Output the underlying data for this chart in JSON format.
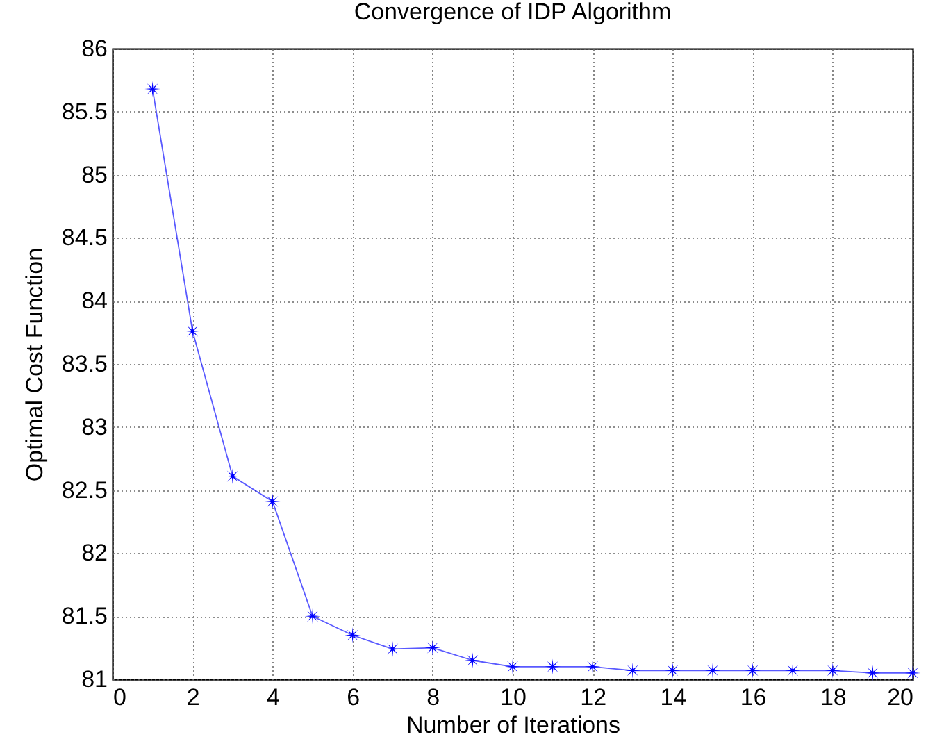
{
  "chart_data": {
    "type": "line",
    "title": "Convergence of IDP Algorithm",
    "xlabel": "Number of Iterations",
    "ylabel": "Optimal Cost Function",
    "x": [
      1,
      2,
      3,
      4,
      5,
      6,
      7,
      8,
      9,
      10,
      11,
      12,
      13,
      14,
      15,
      16,
      17,
      18,
      19,
      20
    ],
    "series": [
      {
        "color": "#0000ff",
        "values": [
          85.68,
          83.76,
          82.61,
          82.41,
          81.5,
          81.35,
          81.24,
          81.25,
          81.15,
          81.1,
          81.1,
          81.1,
          81.07,
          81.07,
          81.07,
          81.07,
          81.07,
          81.07,
          81.05,
          81.05
        ]
      }
    ],
    "xlim": [
      0,
      20
    ],
    "ylim": [
      81,
      86
    ],
    "xticks": [
      0,
      2,
      4,
      6,
      8,
      10,
      12,
      14,
      16,
      18,
      20
    ],
    "yticks": [
      81,
      81.5,
      82,
      82.5,
      83,
      83.5,
      84,
      84.5,
      85,
      85.5,
      86
    ],
    "grid": true,
    "marker": "star",
    "line_style": "solid"
  }
}
